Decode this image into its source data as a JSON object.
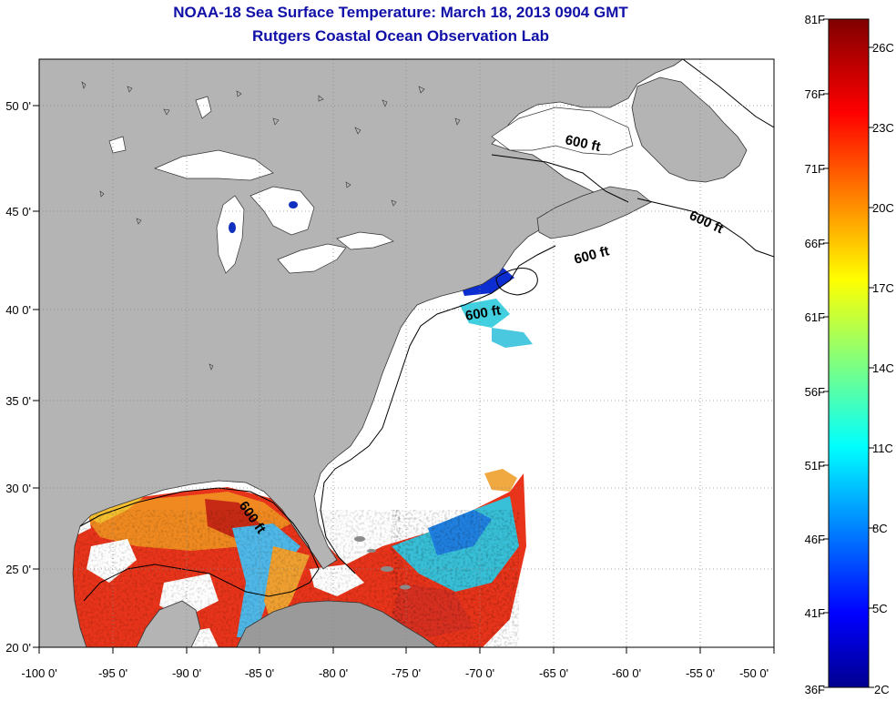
{
  "header": {
    "title": "NOAA-18 Sea Surface Temperature:  March 18, 2013 0904 GMT",
    "subtitle": "Rutgers Coastal Ocean Observation Lab"
  },
  "map": {
    "lon_range": [
      -100,
      -50
    ],
    "lat_range": [
      20,
      52.5
    ],
    "x_ticks": [
      "-100 0'",
      "-95 0'",
      "-90 0'",
      "-85 0'",
      "-80 0'",
      "-75 0'",
      "-70 0'",
      "-65 0'",
      "-60 0'",
      "-55 0'",
      "-50 0'"
    ],
    "y_ticks": [
      "50 0'",
      "45 0'",
      "40 0'",
      "35 0'",
      "30 0'",
      "25 0'",
      "20 0'"
    ],
    "grid": true,
    "contour_labels": [
      "600 ft",
      "600 ft",
      "600 ft",
      "600 ft",
      "600 ft"
    ],
    "colors": {
      "land": "#b4b4b4",
      "water": "#ffffff",
      "grid": "#888888"
    }
  },
  "colorbar": {
    "fahrenheit_labels": [
      "81F",
      "76F",
      "71F",
      "66F",
      "61F",
      "56F",
      "51F",
      "46F",
      "41F",
      "36F"
    ],
    "celsius_labels": [
      "26C",
      "23C",
      "20C",
      "17C",
      "14C",
      "11C",
      "8C",
      "5C",
      "2C"
    ],
    "colormap": "jet",
    "range_f": [
      36,
      81
    ]
  }
}
